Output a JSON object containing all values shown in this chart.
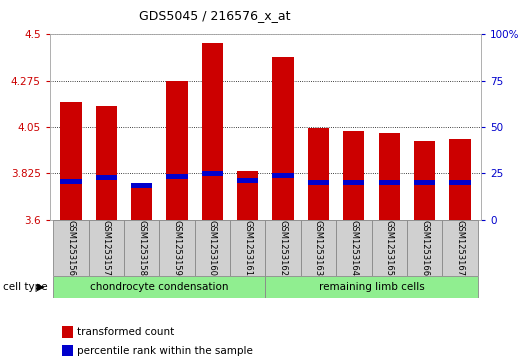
{
  "title": "GDS5045 / 216576_x_at",
  "samples": [
    "GSM1253156",
    "GSM1253157",
    "GSM1253158",
    "GSM1253159",
    "GSM1253160",
    "GSM1253161",
    "GSM1253162",
    "GSM1253163",
    "GSM1253164",
    "GSM1253165",
    "GSM1253166",
    "GSM1253167"
  ],
  "bar_values": [
    4.17,
    4.15,
    3.77,
    4.275,
    4.46,
    3.835,
    4.39,
    4.045,
    4.03,
    4.02,
    3.98,
    3.99
  ],
  "blue_values": [
    3.785,
    3.805,
    3.765,
    3.81,
    3.825,
    3.79,
    3.815,
    3.78,
    3.78,
    3.78,
    3.78,
    3.78
  ],
  "ymin": 3.6,
  "ymax": 4.5,
  "yticks_left": [
    3.6,
    3.825,
    4.05,
    4.275,
    4.5
  ],
  "yticks_right_vals": [
    0,
    25,
    50,
    75,
    100
  ],
  "yticks_right_labels": [
    "0",
    "25",
    "50",
    "75",
    "100%"
  ],
  "cell_type_groups": [
    {
      "label": "chondrocyte condensation",
      "start": 0,
      "end": 5,
      "color": "#90ee90"
    },
    {
      "label": "remaining limb cells",
      "start": 6,
      "end": 11,
      "color": "#90ee90"
    }
  ],
  "bar_color": "#cc0000",
  "blue_color": "#0000cc",
  "bg_color": "#ffffff",
  "tick_color_left": "#cc0000",
  "tick_color_right": "#0000cc",
  "cell_type_label": "cell type",
  "legend_red": "transformed count",
  "legend_blue": "percentile rank within the sample",
  "bar_width": 0.6,
  "cell_box_color": "#d0d0d0"
}
